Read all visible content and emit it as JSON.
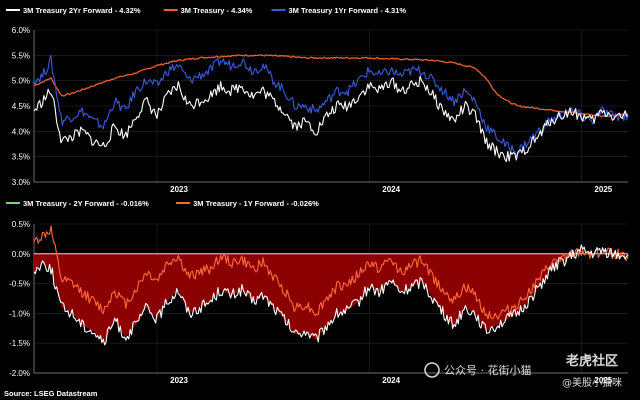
{
  "colors": {
    "two_year": "#ffffff",
    "three_month": "#e8612c",
    "one_year": "#3a5bd9",
    "spread_fill": "#8b0000",
    "spread_2y": "#ffffff",
    "spread_1y": "#ff6a3d",
    "legend_2y_swatch": "#7fd08a",
    "grid": "#2a2a2a",
    "background": "#000000"
  },
  "chart_data": [
    {
      "type": "line",
      "legend": [
        {
          "name": "3M Treasury 2Yr Forward - 4.32%",
          "color": "#ffffff"
        },
        {
          "name": "3M Treasury - 4.34%",
          "color": "#e8612c"
        },
        {
          "name": "3M Treasury 1Yr Forward - 4.31%",
          "color": "#3a5bd9"
        }
      ],
      "ylim": [
        3.0,
        6.0
      ],
      "yticks": [
        "6.0%",
        "5.5%",
        "5.0%",
        "4.5%",
        "4.0%",
        "3.5%",
        "3.0%"
      ],
      "xticks": [
        "2023",
        "2024",
        "2025"
      ],
      "xlim": [
        2022.42,
        2025.22
      ],
      "series": [
        {
          "name": "3M Treasury 2Yr Forward - 4.32%",
          "key": "fwd2y",
          "x": [
            2022.42,
            2022.46,
            2022.5,
            2022.55,
            2022.6,
            2022.65,
            2022.7,
            2022.75,
            2022.8,
            2022.85,
            2022.9,
            2022.95,
            2023.0,
            2023.05,
            2023.1,
            2023.15,
            2023.2,
            2023.25,
            2023.3,
            2023.35,
            2023.4,
            2023.45,
            2023.5,
            2023.55,
            2023.6,
            2023.65,
            2023.7,
            2023.75,
            2023.8,
            2023.85,
            2023.9,
            2023.95,
            2024.0,
            2024.05,
            2024.1,
            2024.15,
            2024.2,
            2024.25,
            2024.3,
            2024.35,
            2024.4,
            2024.45,
            2024.5,
            2024.55,
            2024.6,
            2024.65,
            2024.7,
            2024.75,
            2024.8,
            2024.85,
            2024.9,
            2024.95,
            2025.0,
            2025.05,
            2025.1,
            2025.15,
            2025.22
          ],
          "values": [
            4.4,
            4.6,
            4.8,
            3.8,
            3.9,
            4.0,
            3.8,
            3.7,
            4.1,
            3.9,
            4.3,
            4.6,
            4.3,
            4.7,
            4.9,
            4.5,
            4.6,
            4.7,
            4.9,
            4.8,
            4.9,
            4.7,
            4.8,
            4.6,
            4.4,
            4.1,
            4.2,
            4.0,
            4.3,
            4.5,
            4.5,
            4.7,
            4.9,
            4.8,
            5.0,
            4.8,
            4.9,
            5.0,
            4.7,
            4.4,
            4.2,
            4.5,
            4.3,
            3.8,
            3.6,
            3.5,
            3.5,
            3.7,
            3.9,
            4.2,
            4.3,
            4.4,
            4.3,
            4.2,
            4.4,
            4.3,
            4.32
          ]
        },
        {
          "name": "3M Treasury - 4.34%",
          "key": "spot",
          "x": [
            2022.42,
            2022.5,
            2022.55,
            2022.6,
            2022.7,
            2022.8,
            2022.9,
            2023.0,
            2023.1,
            2023.2,
            2023.3,
            2023.4,
            2023.5,
            2023.6,
            2023.7,
            2023.8,
            2023.9,
            2024.0,
            2024.1,
            2024.2,
            2024.3,
            2024.4,
            2024.5,
            2024.55,
            2024.6,
            2024.65,
            2024.7,
            2024.8,
            2024.9,
            2025.0,
            2025.1,
            2025.22
          ],
          "values": [
            4.9,
            5.05,
            4.7,
            4.75,
            4.9,
            5.05,
            5.15,
            5.3,
            5.4,
            5.45,
            5.48,
            5.5,
            5.5,
            5.48,
            5.45,
            5.45,
            5.45,
            5.45,
            5.43,
            5.42,
            5.4,
            5.35,
            5.25,
            5.05,
            4.75,
            4.6,
            4.5,
            4.45,
            4.4,
            4.35,
            4.3,
            4.34
          ]
        },
        {
          "name": "3M Treasury 1Yr Forward - 4.31%",
          "key": "fwd1y",
          "x": [
            2022.42,
            2022.46,
            2022.5,
            2022.55,
            2022.6,
            2022.65,
            2022.7,
            2022.75,
            2022.8,
            2022.85,
            2022.9,
            2022.95,
            2023.0,
            2023.05,
            2023.1,
            2023.15,
            2023.2,
            2023.25,
            2023.3,
            2023.35,
            2023.4,
            2023.45,
            2023.5,
            2023.55,
            2023.6,
            2023.65,
            2023.7,
            2023.75,
            2023.8,
            2023.85,
            2023.9,
            2023.95,
            2024.0,
            2024.05,
            2024.1,
            2024.15,
            2024.2,
            2024.25,
            2024.3,
            2024.35,
            2024.4,
            2024.45,
            2024.5,
            2024.55,
            2024.6,
            2024.65,
            2024.7,
            2024.75,
            2024.8,
            2024.85,
            2024.9,
            2024.95,
            2025.0,
            2025.05,
            2025.1,
            2025.15,
            2025.22
          ],
          "values": [
            5.0,
            5.1,
            5.4,
            4.2,
            4.3,
            4.4,
            4.2,
            4.1,
            4.6,
            4.4,
            4.8,
            5.0,
            4.9,
            5.2,
            5.3,
            5.0,
            5.1,
            5.2,
            5.4,
            5.3,
            5.4,
            5.2,
            5.3,
            5.0,
            4.8,
            4.5,
            4.5,
            4.4,
            4.6,
            4.8,
            4.8,
            5.0,
            5.2,
            5.1,
            5.2,
            5.1,
            5.2,
            5.2,
            5.0,
            4.8,
            4.6,
            4.8,
            4.6,
            4.1,
            3.9,
            3.7,
            3.6,
            3.8,
            4.0,
            4.2,
            4.3,
            4.4,
            4.3,
            4.2,
            4.4,
            4.3,
            4.31
          ]
        }
      ]
    },
    {
      "type": "area",
      "legend": [
        {
          "name": "3M Treasury - 2Y Forward - -0.016%",
          "color": "#7fd08a"
        },
        {
          "name": "3M Treasury - 1Y Forward - -0.026%",
          "color": "#ff6a3d"
        }
      ],
      "ylim": [
        -2.0,
        0.5
      ],
      "yticks": [
        "0.5%",
        "0.0%",
        "-0.5%",
        "-1.0%",
        "-1.5%",
        "-2.0%"
      ],
      "xticks": [
        "2023",
        "2024",
        "2025"
      ],
      "xlim": [
        2022.42,
        2025.22
      ],
      "series": [
        {
          "name": "3M Treasury - 2Y Forward - -0.016%",
          "key": "spread2y",
          "x": [
            2022.42,
            2022.46,
            2022.5,
            2022.55,
            2022.6,
            2022.65,
            2022.7,
            2022.75,
            2022.8,
            2022.85,
            2022.9,
            2022.95,
            2023.0,
            2023.05,
            2023.1,
            2023.15,
            2023.2,
            2023.25,
            2023.3,
            2023.35,
            2023.4,
            2023.45,
            2023.5,
            2023.55,
            2023.6,
            2023.65,
            2023.7,
            2023.75,
            2023.8,
            2023.85,
            2023.9,
            2023.95,
            2024.0,
            2024.05,
            2024.1,
            2024.15,
            2024.2,
            2024.25,
            2024.3,
            2024.35,
            2024.4,
            2024.45,
            2024.5,
            2024.55,
            2024.6,
            2024.65,
            2024.7,
            2024.75,
            2024.8,
            2024.85,
            2024.9,
            2024.95,
            2025.0,
            2025.05,
            2025.1,
            2025.15,
            2025.22
          ],
          "values": [
            -0.3,
            -0.15,
            -0.25,
            -0.9,
            -1.0,
            -1.2,
            -1.3,
            -1.5,
            -1.1,
            -1.4,
            -1.2,
            -0.9,
            -1.1,
            -0.8,
            -0.6,
            -1.0,
            -0.9,
            -0.8,
            -0.6,
            -0.7,
            -0.6,
            -0.8,
            -0.7,
            -0.9,
            -1.1,
            -1.35,
            -1.3,
            -1.45,
            -1.2,
            -1.0,
            -0.95,
            -0.8,
            -0.55,
            -0.65,
            -0.45,
            -0.65,
            -0.55,
            -0.45,
            -0.75,
            -1.0,
            -1.2,
            -0.9,
            -1.0,
            -1.3,
            -1.2,
            -1.1,
            -1.0,
            -0.8,
            -0.55,
            -0.3,
            -0.15,
            -0.05,
            0.05,
            0.0,
            0.05,
            0.0,
            -0.016
          ]
        },
        {
          "name": "3M Treasury - 1Y Forward - -0.026%",
          "key": "spread1y",
          "x": [
            2022.42,
            2022.46,
            2022.5,
            2022.55,
            2022.6,
            2022.65,
            2022.7,
            2022.75,
            2022.8,
            2022.85,
            2022.9,
            2022.95,
            2023.0,
            2023.05,
            2023.1,
            2023.15,
            2023.2,
            2023.25,
            2023.3,
            2023.35,
            2023.4,
            2023.45,
            2023.5,
            2023.55,
            2023.6,
            2023.65,
            2023.7,
            2023.75,
            2023.8,
            2023.85,
            2023.9,
            2023.95,
            2024.0,
            2024.05,
            2024.1,
            2024.15,
            2024.2,
            2024.25,
            2024.3,
            2024.35,
            2024.4,
            2024.45,
            2024.5,
            2024.55,
            2024.6,
            2024.65,
            2024.7,
            2024.75,
            2024.8,
            2024.85,
            2024.9,
            2024.95,
            2025.0,
            2025.05,
            2025.1,
            2025.15,
            2025.22
          ],
          "values": [
            0.2,
            0.3,
            0.4,
            -0.45,
            -0.5,
            -0.65,
            -0.8,
            -0.95,
            -0.6,
            -0.85,
            -0.6,
            -0.3,
            -0.45,
            -0.15,
            -0.05,
            -0.4,
            -0.3,
            -0.25,
            -0.05,
            -0.15,
            -0.1,
            -0.25,
            -0.15,
            -0.4,
            -0.6,
            -0.9,
            -0.85,
            -1.0,
            -0.75,
            -0.55,
            -0.5,
            -0.35,
            -0.15,
            -0.25,
            -0.1,
            -0.3,
            -0.2,
            -0.1,
            -0.4,
            -0.6,
            -0.8,
            -0.55,
            -0.7,
            -1.0,
            -1.05,
            -0.95,
            -0.85,
            -0.65,
            -0.45,
            -0.2,
            -0.1,
            -0.02,
            0.02,
            0.0,
            0.03,
            0.0,
            -0.026
          ]
        }
      ]
    }
  ],
  "footer": {
    "source": "Source: LSEG Datastream"
  },
  "watermark": {
    "wechat": "公众号 · 花街小猫",
    "brand": "老虎社区",
    "handle": "@美股小猫咪"
  }
}
